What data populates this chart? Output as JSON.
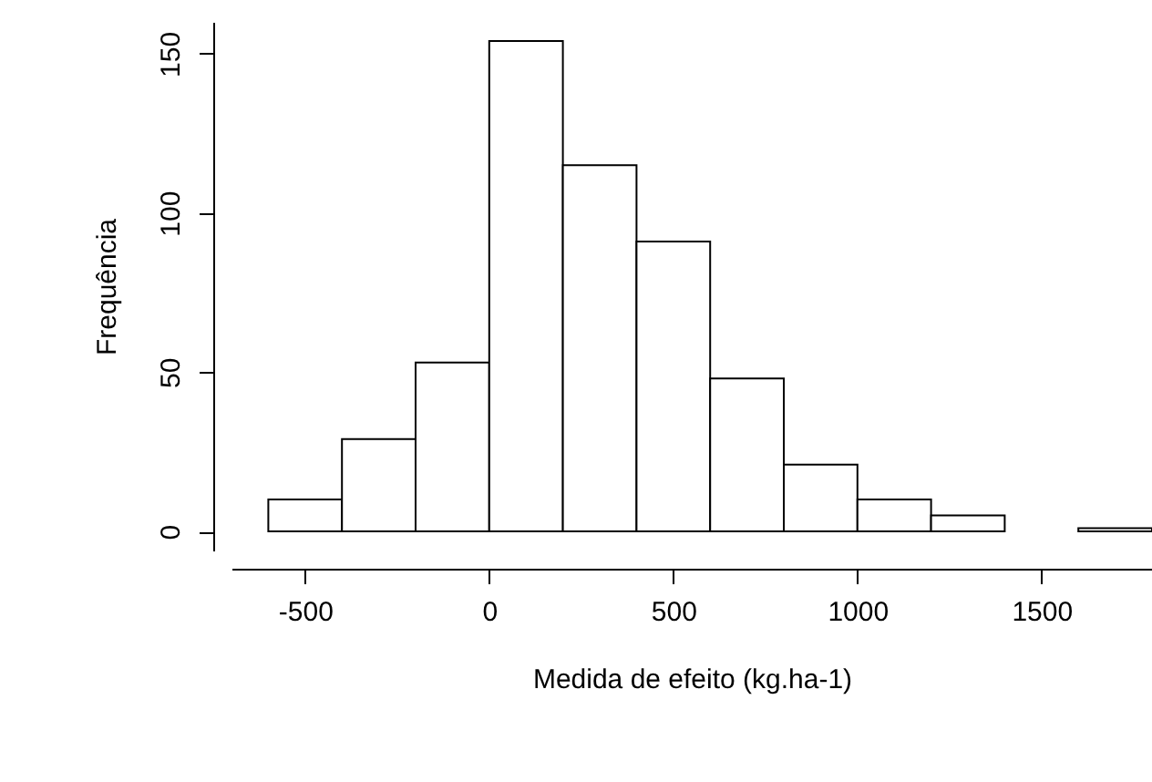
{
  "chart_data": {
    "type": "histogram",
    "xlabel": "Medida de efeito (kg.ha-1)",
    "ylabel": "Frequência",
    "bins": [
      -600,
      -400,
      -200,
      0,
      200,
      400,
      600,
      800,
      1000,
      1200,
      1400,
      1600,
      1800
    ],
    "values": [
      10,
      29,
      53,
      154,
      115,
      91,
      48,
      21,
      10,
      5,
      0,
      1
    ],
    "color": "#ffffff",
    "xlim": [
      -700,
      1800
    ],
    "xticks": [
      -500,
      0,
      500,
      1000,
      1500
    ],
    "ylim": [
      -6,
      160
    ],
    "yticks": [
      0,
      50,
      100,
      150
    ],
    "grid": false
  }
}
